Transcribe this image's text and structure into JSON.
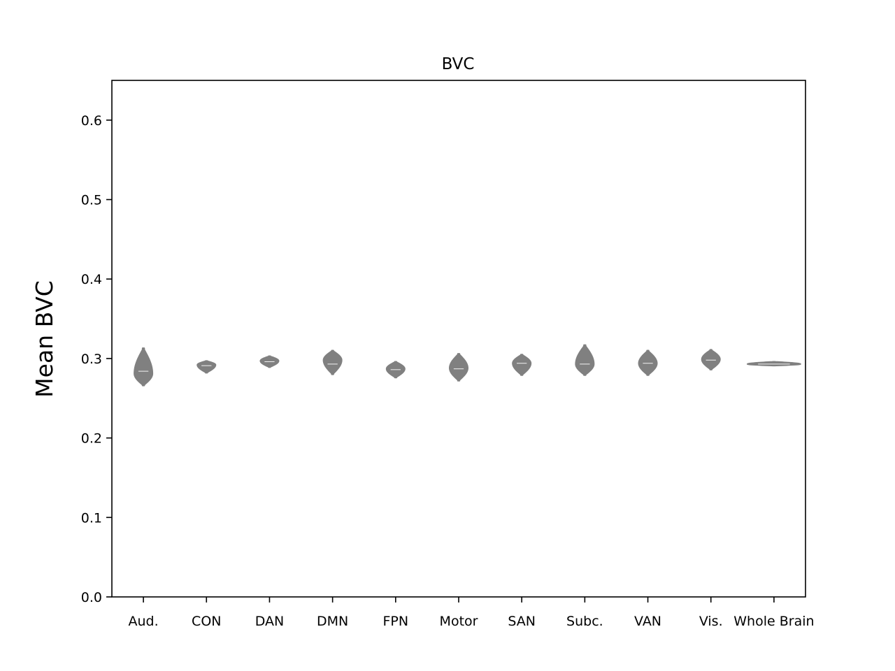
{
  "chart_data": {
    "type": "violin",
    "title": "BVC",
    "xlabel": "",
    "ylabel": "Mean BVC",
    "ylim": [
      0,
      0.65
    ],
    "yticks": [
      "0.0",
      "0.1",
      "0.2",
      "0.3",
      "0.4",
      "0.5",
      "0.6"
    ],
    "grid": false,
    "color": "#808080",
    "categories": [
      "Aud.",
      "CON",
      "DAN",
      "DMN",
      "FPN",
      "Motor",
      "SAN",
      "Subc.",
      "VAN",
      "Vis.",
      "Whole Brain"
    ],
    "series": [
      {
        "category": "Aud.",
        "min": 0.266,
        "max": 0.313,
        "mode": 0.281,
        "median": 0.284
      },
      {
        "category": "CON",
        "min": 0.282,
        "max": 0.297,
        "mode": 0.292,
        "median": 0.291
      },
      {
        "category": "DAN",
        "min": 0.289,
        "max": 0.303,
        "mode": 0.297,
        "median": 0.296
      },
      {
        "category": "DMN",
        "min": 0.28,
        "max": 0.31,
        "mode": 0.298,
        "median": 0.293
      },
      {
        "category": "FPN",
        "min": 0.276,
        "max": 0.296,
        "mode": 0.287,
        "median": 0.286
      },
      {
        "category": "Motor",
        "min": 0.272,
        "max": 0.306,
        "mode": 0.288,
        "median": 0.287
      },
      {
        "category": "SAN",
        "min": 0.279,
        "max": 0.305,
        "mode": 0.294,
        "median": 0.294
      },
      {
        "category": "Subc.",
        "min": 0.279,
        "max": 0.317,
        "mode": 0.293,
        "median": 0.293
      },
      {
        "category": "VAN",
        "min": 0.279,
        "max": 0.31,
        "mode": 0.294,
        "median": 0.294
      },
      {
        "category": "Vis.",
        "min": 0.286,
        "max": 0.311,
        "mode": 0.299,
        "median": 0.298
      },
      {
        "category": "Whole Brain",
        "min": 0.291,
        "max": 0.296,
        "mode": 0.293,
        "median": 0.293
      }
    ]
  }
}
